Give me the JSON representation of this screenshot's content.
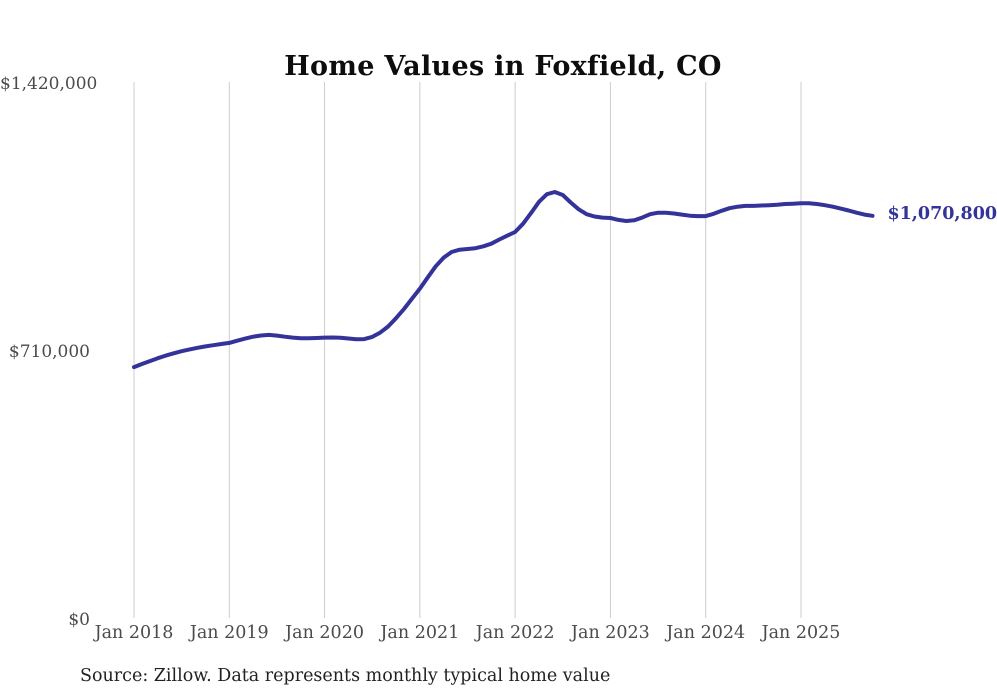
{
  "chart_data": {
    "type": "line",
    "title": "Home Values in Foxfield, CO",
    "source_note": "Source: Zillow. Data represents monthly typical home value",
    "end_label": "$1,070,800",
    "end_value": 1070800,
    "line_color": "#333399",
    "grid_color": "#cccccc",
    "xlabel": "",
    "ylabel": "",
    "ylim": [
      0,
      1420000
    ],
    "grid": "vertical-only",
    "legend": "none",
    "y_ticks": [
      {
        "label": "$1,420,000",
        "value": 1420000
      },
      {
        "label": "$710,000",
        "value": 710000
      },
      {
        "label": "$0",
        "value": 0
      }
    ],
    "x_ticks": [
      "Jan 2018",
      "Jan 2019",
      "Jan 2020",
      "Jan 2021",
      "Jan 2022",
      "Jan 2023",
      "Jan 2024",
      "Jan 2025"
    ],
    "x_start": "Jan 2018",
    "x_end": "Oct 2025",
    "frequency": "monthly",
    "series": [
      {
        "name": "Typical home value",
        "values": [
          670000,
          678200,
          686000,
          693500,
          700400,
          706500,
          712000,
          716800,
          721000,
          724800,
          728100,
          731200,
          734200,
          740000,
          745500,
          750500,
          753800,
          755200,
          753500,
          750600,
          748200,
          746500,
          746200,
          747000,
          748200,
          748500,
          747800,
          745800,
          743600,
          744200,
          750000,
          761500,
          777500,
          799500,
          824000,
          851000,
          878000,
          908000,
          937000,
          960000,
          975000,
          981000,
          983000,
          985000,
          990000,
          997000,
          1008000,
          1018000,
          1028000,
          1050000,
          1078000,
          1108000,
          1128000,
          1134000,
          1126000,
          1106000,
          1088000,
          1075000,
          1069000,
          1066000,
          1065000,
          1060000,
          1057000,
          1059000,
          1066000,
          1075000,
          1079000,
          1079000,
          1077000,
          1074000,
          1071000,
          1070000,
          1070000,
          1076000,
          1084000,
          1091000,
          1095000,
          1097000,
          1097000,
          1098000,
          1099000,
          1100000,
          1102000,
          1103000,
          1104000,
          1104000,
          1102000,
          1099000,
          1095000,
          1090000,
          1085000,
          1079000,
          1074000,
          1070800
        ]
      }
    ]
  }
}
